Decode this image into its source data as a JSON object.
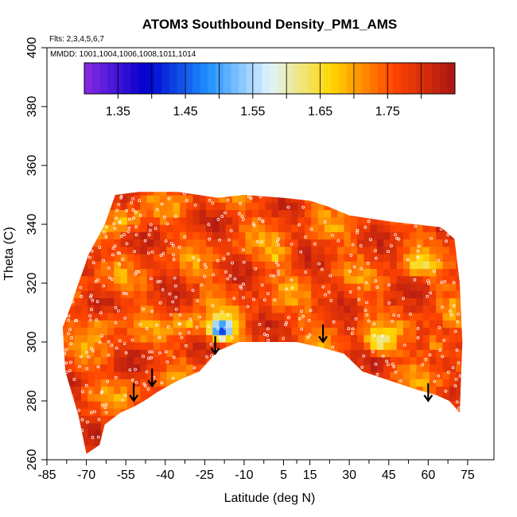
{
  "chart_data": {
    "type": "heatmap",
    "title": "ATOM3 Southbound Density_PM1_AMS",
    "flights_note": "Flts: 2,3,4,5,6,7",
    "dates_note": "MMDD: 1001,1004,1006,1008,1011,1014",
    "xlabel": "Latitude (deg N)",
    "ylabel": "Theta (C)",
    "xlim": [
      -85,
      85
    ],
    "ylim": [
      260,
      400
    ],
    "x_ticks": [
      -85,
      -70,
      -55,
      -40,
      -25,
      -10,
      5,
      15,
      30,
      45,
      60,
      75
    ],
    "x_tick_labels": [
      "-85",
      "-70",
      "-55",
      "-40",
      "-25",
      "-10",
      "5",
      "15",
      "30",
      "45",
      "60",
      "75"
    ],
    "y_ticks": [
      260,
      280,
      300,
      320,
      340,
      360,
      380,
      400
    ],
    "y_tick_labels": [
      "260",
      "280",
      "300",
      "320",
      "340",
      "360",
      "380",
      "400"
    ],
    "colorbar": {
      "range": [
        1.3,
        1.85
      ],
      "ticks": [
        1.35,
        1.45,
        1.55,
        1.65,
        1.75
      ],
      "tick_labels": [
        "1.35",
        "1.45",
        "1.55",
        "1.65",
        "1.75"
      ],
      "colors": [
        "#8a2be2",
        "#0000cd",
        "#1e90ff",
        "#e0f4ff",
        "#ffd700",
        "#ff4500",
        "#aa1515"
      ]
    },
    "field_base_value": 1.76,
    "data_envelope": [
      [
        -70,
        262
      ],
      [
        -73,
        275
      ],
      [
        -78,
        290
      ],
      [
        -79,
        305
      ],
      [
        -76,
        312
      ],
      [
        -73,
        320
      ],
      [
        -69,
        330
      ],
      [
        -63,
        340
      ],
      [
        -59,
        350
      ],
      [
        -50,
        351
      ],
      [
        -35,
        351
      ],
      [
        -20,
        349
      ],
      [
        -10,
        350
      ],
      [
        5,
        349
      ],
      [
        15,
        348
      ],
      [
        22,
        346
      ],
      [
        30,
        343
      ],
      [
        45,
        341
      ],
      [
        55,
        340
      ],
      [
        65,
        339
      ],
      [
        70,
        335
      ],
      [
        72,
        320
      ],
      [
        73,
        300
      ],
      [
        72,
        276
      ],
      [
        68,
        280
      ],
      [
        63,
        282
      ],
      [
        55,
        284
      ],
      [
        45,
        287
      ],
      [
        35,
        290
      ],
      [
        28,
        296
      ],
      [
        20,
        298
      ],
      [
        10,
        300
      ],
      [
        -5,
        300
      ],
      [
        -12,
        300
      ],
      [
        -20,
        297
      ],
      [
        -27,
        290
      ],
      [
        -35,
        287
      ],
      [
        -43,
        283
      ],
      [
        -48,
        280
      ],
      [
        -52,
        278
      ],
      [
        -57,
        276
      ],
      [
        -63,
        272
      ],
      [
        -65,
        265
      ]
    ],
    "anomalies": [
      {
        "lat": -20,
        "theta": 303,
        "value": 1.43
      },
      {
        "lat": 40,
        "theta": 299,
        "value": 1.62
      },
      {
        "lat": -33,
        "theta": 305,
        "value": 1.68
      },
      {
        "lat": 55,
        "theta": 325,
        "value": 1.68
      },
      {
        "lat": -55,
        "theta": 340,
        "value": 1.68
      },
      {
        "lat": 62,
        "theta": 298,
        "value": 1.66
      },
      {
        "lat": -65,
        "theta": 305,
        "value": 1.68
      },
      {
        "lat": 2,
        "theta": 328,
        "value": 1.7
      }
    ],
    "sample_points_count": 420,
    "arrows": [
      {
        "lat": -52,
        "theta": 286
      },
      {
        "lat": -45,
        "theta": 291
      },
      {
        "lat": -21,
        "theta": 302
      },
      {
        "lat": 20,
        "theta": 306
      },
      {
        "lat": 60,
        "theta": 286
      }
    ]
  }
}
